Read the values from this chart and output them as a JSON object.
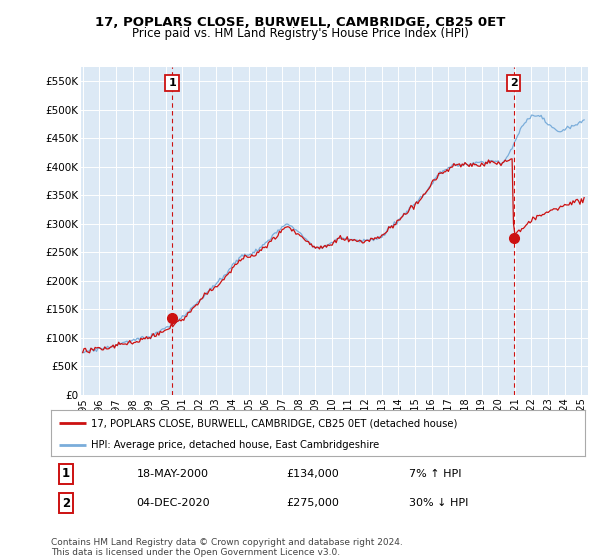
{
  "title": "17, POPLARS CLOSE, BURWELL, CAMBRIDGE, CB25 0ET",
  "subtitle": "Price paid vs. HM Land Registry's House Price Index (HPI)",
  "background_color": "#ffffff",
  "plot_bg_color": "#dce9f5",
  "grid_color": "#ffffff",
  "hpi_line_color": "#7aadda",
  "price_line_color": "#cc1111",
  "vline_color": "#cc1111",
  "legend_label_price": "17, POPLARS CLOSE, BURWELL, CAMBRIDGE, CB25 0ET (detached house)",
  "legend_label_hpi": "HPI: Average price, detached house, East Cambridgeshire",
  "sale1_date_label": "18-MAY-2000",
  "sale1_price_label": "£134,000",
  "sale1_hpi_label": "7% ↑ HPI",
  "sale2_date_label": "04-DEC-2020",
  "sale2_price_label": "£275,000",
  "sale2_hpi_label": "30% ↓ HPI",
  "footer": "Contains HM Land Registry data © Crown copyright and database right 2024.\nThis data is licensed under the Open Government Licence v3.0.",
  "sale1_x": 2000.38,
  "sale1_y": 134000,
  "sale2_x": 2020.92,
  "sale2_y": 275000,
  "ylim": [
    0,
    575000
  ],
  "yticks": [
    0,
    50000,
    100000,
    150000,
    200000,
    250000,
    300000,
    350000,
    400000,
    450000,
    500000,
    550000
  ],
  "ytick_labels": [
    "£0",
    "£50K",
    "£100K",
    "£150K",
    "£200K",
    "£250K",
    "£300K",
    "£350K",
    "£400K",
    "£450K",
    "£500K",
    "£550K"
  ],
  "xlim": [
    1994.9,
    2025.4
  ],
  "xtick_years": [
    1995,
    1996,
    1997,
    1998,
    1999,
    2000,
    2001,
    2002,
    2003,
    2004,
    2005,
    2006,
    2007,
    2008,
    2009,
    2010,
    2011,
    2012,
    2013,
    2014,
    2015,
    2016,
    2017,
    2018,
    2019,
    2020,
    2021,
    2022,
    2023,
    2024,
    2025
  ]
}
